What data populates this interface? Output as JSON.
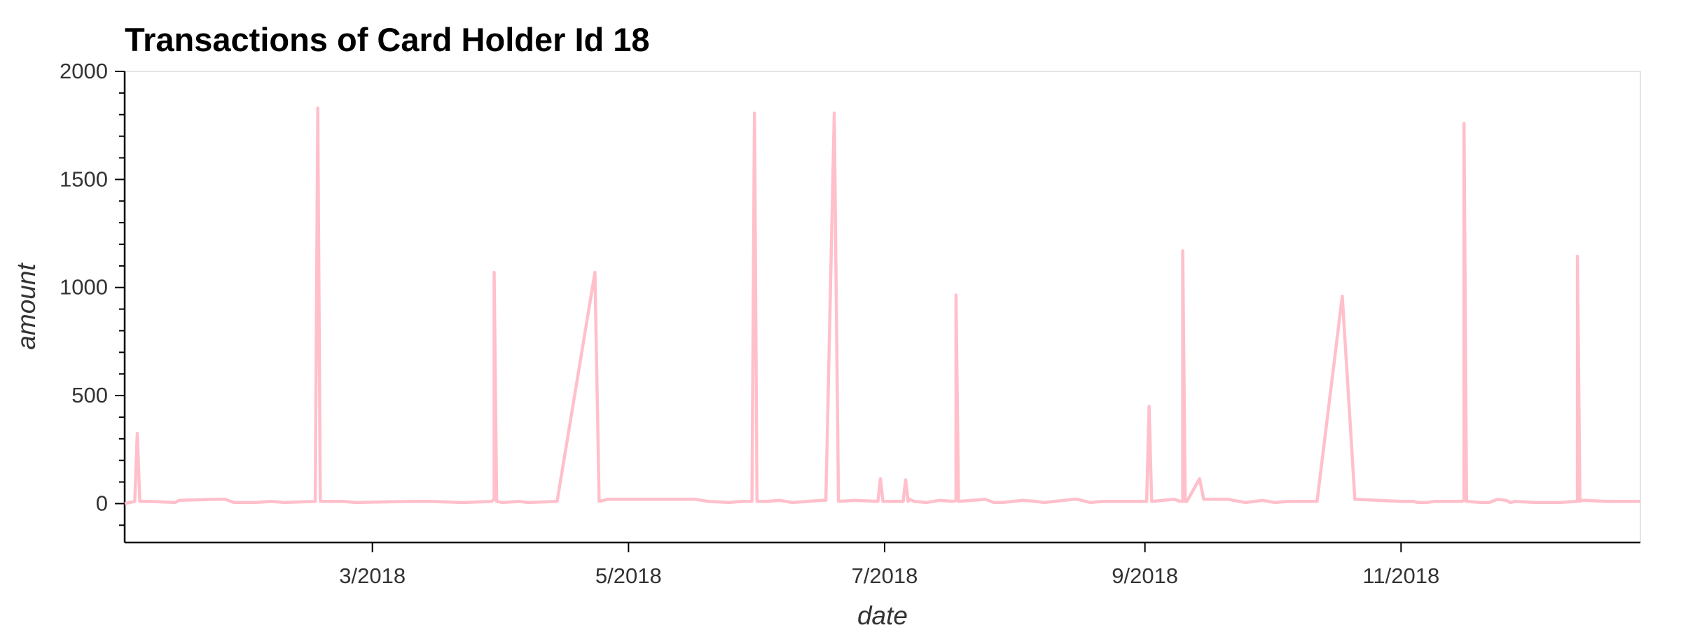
{
  "chart_data": {
    "type": "line",
    "title": "Transactions of Card Holder Id 18",
    "xlabel": "date",
    "ylabel": "amount",
    "xlim": [
      "2018-01-01",
      "2018-12-28"
    ],
    "ylim": [
      -180,
      2000
    ],
    "yticks": [
      0,
      500,
      1000,
      1500,
      2000
    ],
    "xticks": [
      {
        "date": "2018-03-01",
        "label": "3/2018"
      },
      {
        "date": "2018-05-01",
        "label": "5/2018"
      },
      {
        "date": "2018-07-01",
        "label": "7/2018"
      },
      {
        "date": "2018-09-01",
        "label": "9/2018"
      },
      {
        "date": "2018-11-01",
        "label": "11/2018"
      }
    ],
    "grid": false,
    "line_color": "#ffc0cb",
    "series": [
      {
        "x": [
          "2018-01-01",
          "2018-01-04",
          "2018-01-07",
          "2018-01-13",
          "2018-01-14",
          "2018-01-23",
          "2018-01-25",
          "2018-01-27",
          "2018-02-01",
          "2018-02-05",
          "2018-02-08",
          "2018-02-22",
          "2018-02-25",
          "2018-03-10",
          "2018-03-15",
          "2018-03-22",
          "2018-03-23",
          "2018-03-30",
          "2018-04-01",
          "2018-04-05",
          "2018-04-07",
          "2018-04-14",
          "2018-04-23",
          "2018-04-24",
          "2018-04-26",
          "2018-04-28",
          "2018-05-17",
          "2018-05-20",
          "2018-05-25",
          "2018-05-28",
          "2018-06-03",
          "2018-06-06",
          "2018-06-09",
          "2018-06-16",
          "2018-06-17",
          "2018-06-19",
          "2018-06-20",
          "2018-06-24",
          "2018-07-07",
          "2018-07-08",
          "2018-07-11",
          "2018-07-14",
          "2018-07-18",
          "2018-07-25",
          "2018-07-27",
          "2018-07-29",
          "2018-08-03",
          "2018-08-06",
          "2018-08-08",
          "2018-08-15",
          "2018-08-16",
          "2018-08-19",
          "2018-08-22",
          "2018-09-08",
          "2018-09-10",
          "2018-09-11",
          "2018-09-14",
          "2018-09-15",
          "2018-09-21",
          "2018-09-22",
          "2018-09-25",
          "2018-09-29",
          "2018-10-02",
          "2018-10-05",
          "2018-10-12",
          "2018-10-18",
          "2018-10-21",
          "2018-11-01",
          "2018-11-04",
          "2018-11-05",
          "2018-11-07",
          "2018-11-09",
          "2018-11-14",
          "2018-11-16",
          "2018-11-20",
          "2018-11-22",
          "2018-11-24",
          "2018-11-26",
          "2018-11-27",
          "2018-11-28",
          "2018-12-03",
          "2018-12-09",
          "2018-12-13",
          "2018-12-14",
          "2018-12-15",
          "2018-12-20",
          "2018-12-28"
        ],
        "values": [
          0,
          325,
          10,
          5,
          15,
          20,
          20,
          5,
          5,
          10,
          5,
          10,
          5,
          10,
          10,
          5,
          5,
          20,
          5,
          10,
          5,
          10,
          1070,
          10,
          20,
          20,
          20,
          10,
          5,
          10,
          10,
          15,
          5,
          15,
          15,
          1807,
          10,
          15,
          20,
          10,
          5,
          15,
          15,
          20,
          5,
          5,
          15,
          10,
          5,
          20,
          20,
          5,
          10,
          20,
          10,
          10,
          115,
          20,
          20,
          15,
          5,
          15,
          5,
          10,
          10,
          960,
          20,
          10,
          10,
          5,
          5,
          10,
          10,
          15,
          5,
          5,
          20,
          15,
          5,
          10,
          5,
          5,
          10,
          15,
          15,
          10,
          10
        ]
      }
    ],
    "spikes": [
      {
        "date": "2018-01-04",
        "value": 325
      },
      {
        "date": "2018-02-16",
        "value": 1830
      },
      {
        "date": "2018-03-30",
        "value": 1070
      },
      {
        "date": "2018-05-31",
        "value": 1807
      },
      {
        "date": "2018-06-30",
        "value": 115
      },
      {
        "date": "2018-07-06",
        "value": 110
      },
      {
        "date": "2018-07-18",
        "value": 965
      },
      {
        "date": "2018-09-02",
        "value": 450
      },
      {
        "date": "2018-09-10",
        "value": 1170
      },
      {
        "date": "2018-11-16",
        "value": 1760
      },
      {
        "date": "2018-12-13",
        "value": 1145
      }
    ]
  }
}
